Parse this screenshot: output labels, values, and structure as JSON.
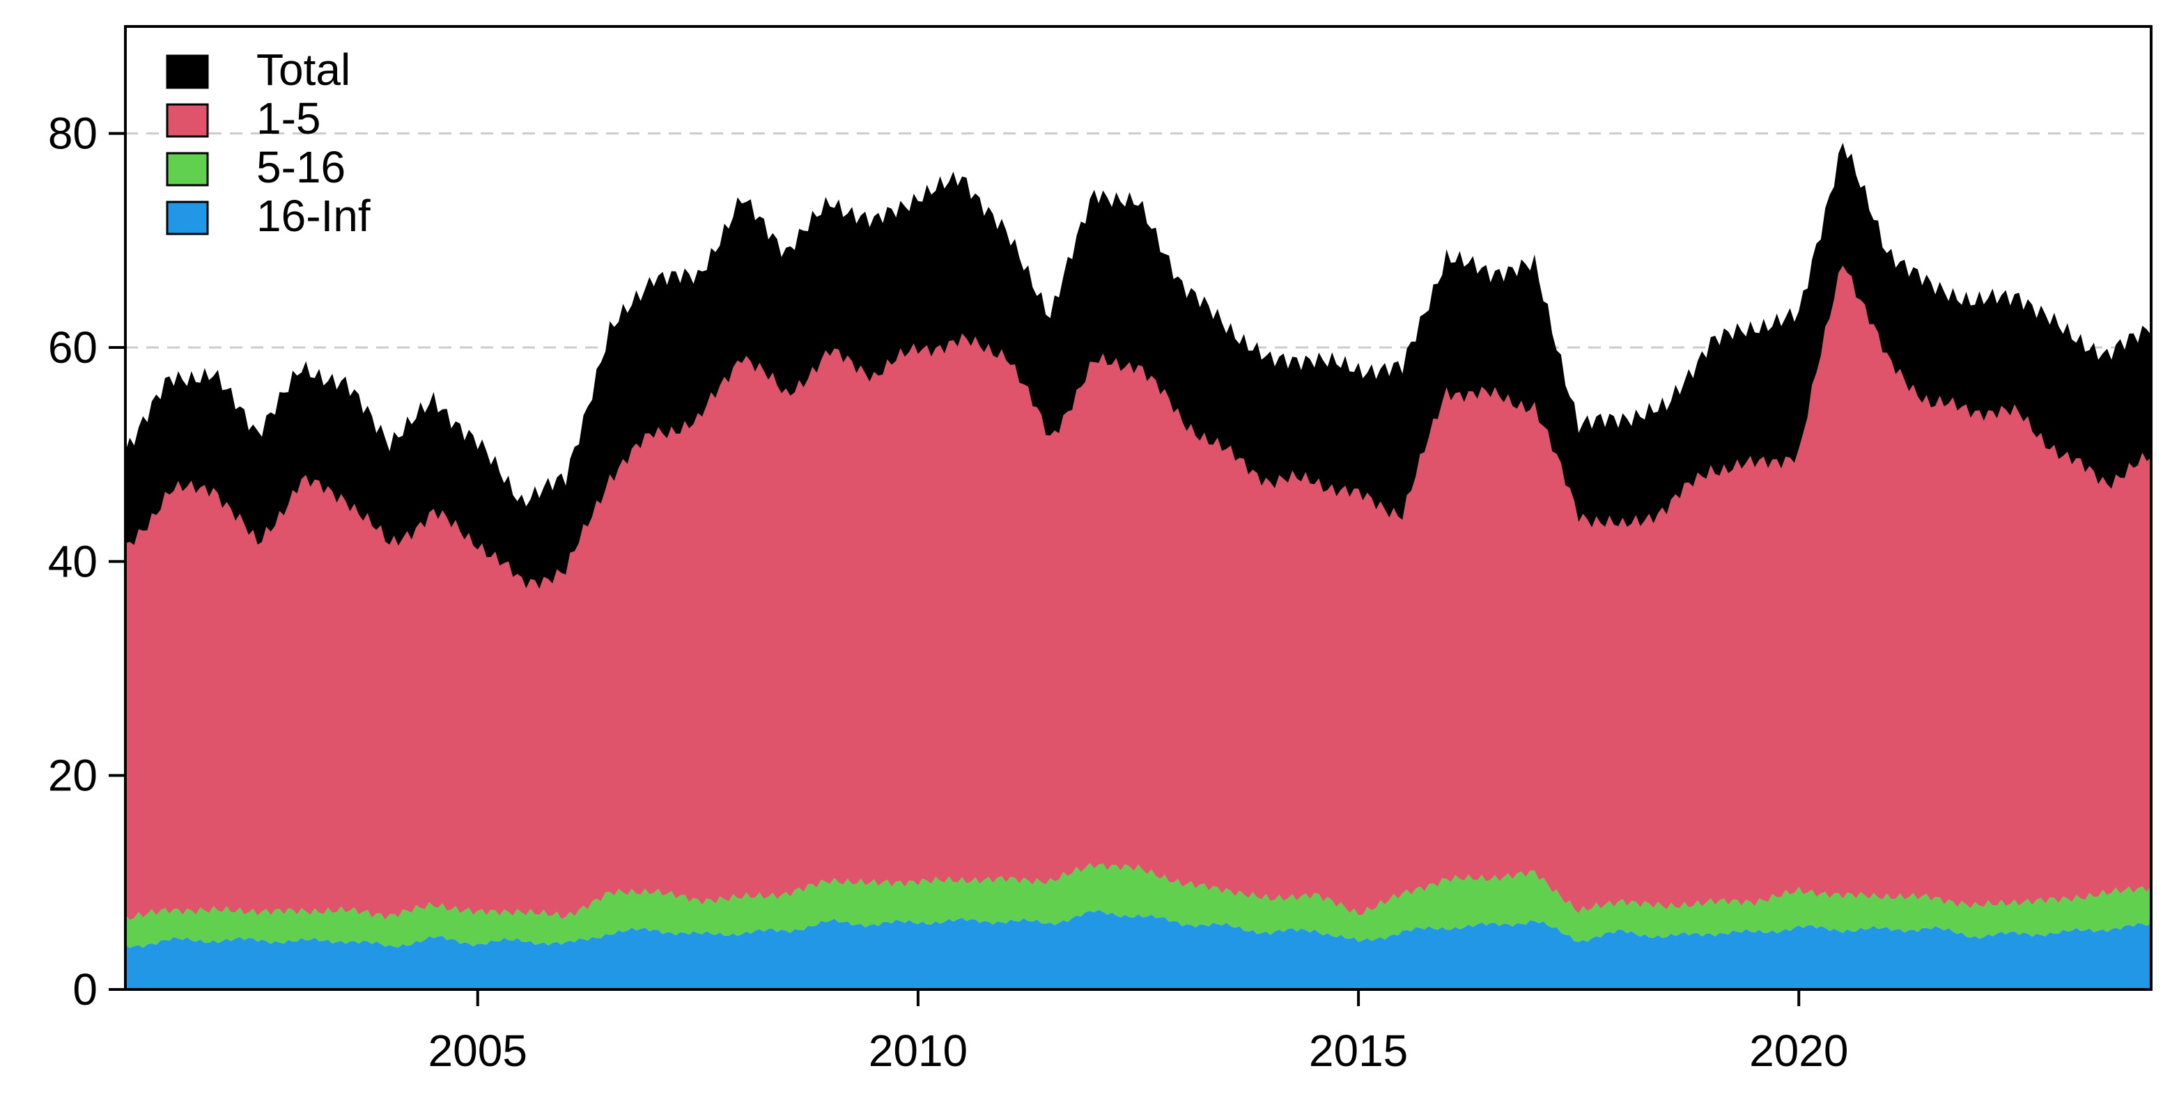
{
  "chart_data": {
    "type": "area",
    "stacked": true,
    "x_axis": {
      "min": 2001.0,
      "max": 2024.0,
      "ticks": [
        2005,
        2010,
        2015,
        2020
      ]
    },
    "y_axis": {
      "min": 0,
      "max": 90,
      "ticks": [
        0,
        20,
        40,
        60,
        80
      ]
    },
    "grid": {
      "horizontal": true,
      "style": "dashed",
      "at": [
        60,
        80
      ]
    },
    "legend": {
      "position": "top-left"
    },
    "x": [
      2001.0,
      2001.5,
      2002.0,
      2002.5,
      2003.0,
      2003.5,
      2004.0,
      2004.5,
      2005.0,
      2005.5,
      2006.0,
      2006.5,
      2007.0,
      2007.5,
      2008.0,
      2008.5,
      2009.0,
      2009.5,
      2010.0,
      2010.5,
      2011.0,
      2011.5,
      2012.0,
      2012.5,
      2013.0,
      2013.5,
      2014.0,
      2014.5,
      2015.0,
      2015.5,
      2016.0,
      2016.5,
      2017.0,
      2017.5,
      2018.0,
      2018.5,
      2019.0,
      2019.5,
      2020.0,
      2020.5,
      2021.0,
      2021.5,
      2022.0,
      2022.5,
      2023.0,
      2023.5,
      2024.0
    ],
    "series": [
      {
        "name": "16-Inf",
        "color": "#2297e6",
        "values": [
          4.0,
          4.6,
          4.6,
          4.6,
          4.5,
          4.6,
          4.0,
          4.8,
          4.3,
          4.6,
          4.2,
          5.3,
          5.6,
          5.1,
          5.3,
          5.5,
          6.3,
          6.1,
          6.3,
          6.4,
          6.4,
          6.2,
          7.2,
          6.9,
          6.2,
          5.9,
          5.3,
          5.6,
          4.4,
          5.4,
          5.8,
          6.0,
          6.4,
          4.6,
          5.4,
          4.9,
          5.3,
          5.3,
          5.8,
          5.6,
          5.6,
          5.7,
          5.0,
          5.2,
          5.3,
          5.7,
          6.0
        ]
      },
      {
        "name": "5-16",
        "color": "#61d04f",
        "values": [
          2.7,
          2.8,
          2.8,
          2.7,
          2.8,
          2.8,
          2.9,
          3.1,
          2.9,
          2.7,
          2.6,
          3.7,
          3.6,
          3.2,
          3.3,
          3.4,
          3.9,
          3.8,
          3.8,
          3.8,
          3.9,
          3.9,
          4.5,
          4.4,
          3.7,
          3.4,
          3.1,
          3.3,
          2.7,
          3.5,
          4.5,
          4.4,
          4.5,
          2.7,
          2.9,
          2.8,
          2.9,
          2.9,
          3.4,
          3.2,
          3.1,
          2.9,
          2.8,
          3.0,
          3.1,
          3.3,
          3.6
        ]
      },
      {
        "name": "1-5",
        "color": "#df536b",
        "values": [
          34.3,
          39.1,
          39.6,
          34.2,
          40.2,
          38.6,
          34.6,
          36.6,
          34.6,
          30.7,
          32.2,
          39.0,
          42.8,
          44.7,
          50.9,
          46.6,
          49.3,
          47.6,
          49.8,
          50.3,
          49.2,
          41.4,
          46.8,
          47.2,
          43.3,
          40.9,
          39.1,
          38.7,
          39.0,
          35.6,
          45.7,
          45.1,
          43.6,
          37.2,
          34.8,
          37.4,
          40.5,
          40.8,
          40.9,
          59.6,
          50.1,
          46.1,
          46.4,
          45.5,
          41.4,
          38.5,
          40.0
        ]
      },
      {
        "name": "Total",
        "color": "#000000",
        "values": [
          9.5,
          10.5,
          10.5,
          10.6,
          10.5,
          10.6,
          9.7,
          10.5,
          9.3,
          7.7,
          8.8,
          13.5,
          14.7,
          13.5,
          14.4,
          13.5,
          14.1,
          14.2,
          14.2,
          15.4,
          11.2,
          11.6,
          16.0,
          14.9,
          12.7,
          11.8,
          11.2,
          11.4,
          11.8,
          13.6,
          12.5,
          11.5,
          13.2,
          8.3,
          10.3,
          9.3,
          11.9,
          12.9,
          12.9,
          10.8,
          10.3,
          11.0,
          10.1,
          11.2,
          11.8,
          11.7,
          12.5
        ]
      }
    ]
  }
}
